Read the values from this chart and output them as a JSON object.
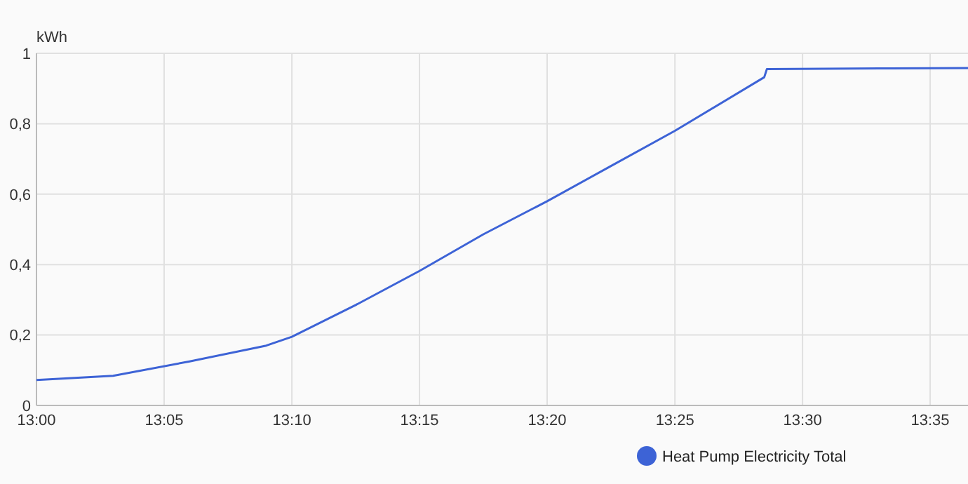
{
  "chart_data": {
    "type": "line",
    "ylabel": "kWh",
    "x": [
      13.0,
      13.05,
      13.1,
      13.15,
      13.1667,
      13.2083,
      13.25,
      13.2917,
      13.3333,
      13.375,
      13.4167,
      13.475,
      13.4767,
      13.55,
      13.608
    ],
    "series": [
      {
        "name": "Heat Pump Electricity Total",
        "color": "#3d63d6",
        "values": [
          0.072,
          0.084,
          0.125,
          0.17,
          0.195,
          0.285,
          0.382,
          0.486,
          0.58,
          0.68,
          0.78,
          0.932,
          0.955,
          0.957,
          0.958
        ]
      }
    ],
    "xlim": [
      13.0,
      13.608
    ],
    "xticks": [
      {
        "value": 13.0,
        "label": "13:00"
      },
      {
        "value": 13.0833,
        "label": "13:05"
      },
      {
        "value": 13.1667,
        "label": "13:10"
      },
      {
        "value": 13.25,
        "label": "13:15"
      },
      {
        "value": 13.3333,
        "label": "13:20"
      },
      {
        "value": 13.4167,
        "label": "13:25"
      },
      {
        "value": 13.5,
        "label": "13:30"
      },
      {
        "value": 13.5833,
        "label": "13:35"
      }
    ],
    "ylim": [
      0,
      1
    ],
    "yticks": [
      {
        "value": 0,
        "label": "0"
      },
      {
        "value": 0.2,
        "label": "0,2"
      },
      {
        "value": 0.4,
        "label": "0,4"
      },
      {
        "value": 0.6,
        "label": "0,6"
      },
      {
        "value": 0.8,
        "label": "0,8"
      },
      {
        "value": 1,
        "label": "1"
      }
    ],
    "grid": true,
    "legend": "bottom",
    "marker": "none",
    "line_style": "solid"
  }
}
